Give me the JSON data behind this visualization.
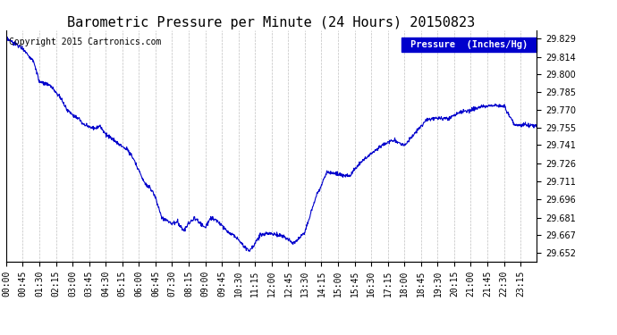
{
  "title": "Barometric Pressure per Minute (24 Hours) 20150823",
  "copyright": "Copyright 2015 Cartronics.com",
  "legend_label": "Pressure  (Inches/Hg)",
  "line_color": "#0000CC",
  "background_color": "#ffffff",
  "plot_bg_color": "#ffffff",
  "grid_color": "#C0C0C0",
  "yticks": [
    29.652,
    29.667,
    29.681,
    29.696,
    29.711,
    29.726,
    29.741,
    29.755,
    29.77,
    29.785,
    29.8,
    29.814,
    29.829
  ],
  "ymin": 29.645,
  "ymax": 29.836,
  "xtick_labels": [
    "00:00",
    "00:45",
    "01:30",
    "02:15",
    "03:00",
    "03:45",
    "04:30",
    "05:15",
    "06:00",
    "06:45",
    "07:30",
    "08:15",
    "09:00",
    "09:45",
    "10:30",
    "11:15",
    "12:00",
    "12:45",
    "13:30",
    "14:15",
    "15:00",
    "15:45",
    "16:30",
    "17:15",
    "18:00",
    "18:45",
    "19:30",
    "20:15",
    "21:00",
    "21:45",
    "22:30",
    "23:15"
  ],
  "waypoints_min": [
    0,
    45,
    75,
    90,
    120,
    150,
    165,
    195,
    210,
    240,
    255,
    270,
    300,
    315,
    330,
    345,
    360,
    375,
    390,
    405,
    420,
    435,
    450,
    465,
    480,
    495,
    510,
    525,
    540,
    555,
    570,
    585,
    600,
    615,
    630,
    645,
    660,
    675,
    690,
    720,
    750,
    780,
    810,
    840,
    870,
    900,
    930,
    960,
    990,
    1020,
    1050,
    1080,
    1110,
    1140,
    1170,
    1200,
    1230,
    1260,
    1290,
    1320,
    1350,
    1380,
    1410,
    1439
  ],
  "waypoints_val": [
    29.829,
    29.821,
    29.81,
    29.793,
    29.79,
    29.779,
    29.77,
    29.763,
    29.758,
    29.755,
    29.757,
    29.75,
    29.743,
    29.74,
    29.737,
    29.73,
    29.72,
    29.71,
    29.706,
    29.698,
    29.682,
    29.679,
    29.676,
    29.678,
    29.67,
    29.676,
    29.681,
    29.677,
    29.673,
    29.681,
    29.679,
    29.675,
    29.67,
    29.667,
    29.663,
    29.657,
    29.654,
    29.66,
    29.667,
    29.668,
    29.666,
    29.66,
    29.669,
    29.698,
    29.719,
    29.717,
    29.715,
    29.726,
    29.734,
    29.741,
    29.745,
    29.741,
    29.751,
    29.762,
    29.763,
    29.763,
    29.768,
    29.77,
    29.773,
    29.774,
    29.773,
    29.757,
    29.758,
    29.757
  ],
  "title_fontsize": 11,
  "tick_fontsize": 7,
  "copyright_fontsize": 7,
  "legend_fontsize": 7.5
}
